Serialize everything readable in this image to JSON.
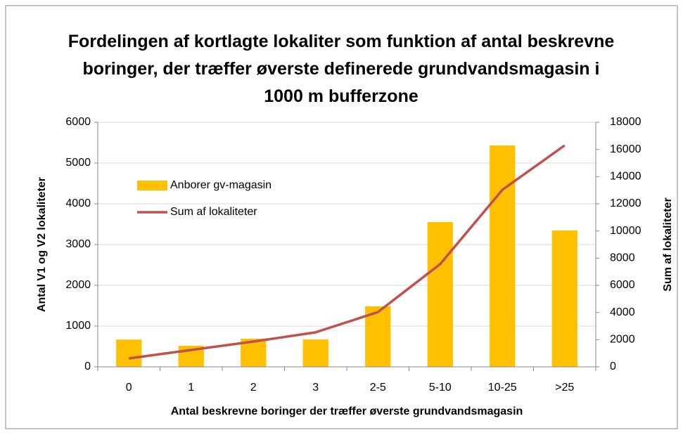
{
  "chart_data": {
    "type": "bar",
    "title": "Fordelingen af kortlagte lokaliter som funktion af antal beskrevne boringer, der træffer øverste definerede grundvandsmagasin i 1000 m bufferzone",
    "x_label": "Antal beskrevne boringer der træffer øverste grundvandsmagasin",
    "y_label": "Antal V1 og V2 lokaliteter",
    "y2_label": "Sum af lokaliteter",
    "categories": [
      "0",
      "1",
      "2",
      "3",
      "2-5",
      "5-10",
      "10-25",
      ">25"
    ],
    "series": [
      {
        "name": "Anborer gv-magasin",
        "type": "bar",
        "color": "#ffc000",
        "values": [
          670,
          517,
          690,
          672,
          1483,
          3552,
          5431,
          3345
        ]
      },
      {
        "name": "Sum af lokaliteter",
        "type": "line",
        "axis": "y2",
        "color": "#c0504d",
        "values": [
          620,
          1240,
          1860,
          2540,
          4030,
          7560,
          13030,
          16300
        ]
      }
    ],
    "ylim": [
      0,
      6000
    ],
    "yticks": [
      0,
      1000,
      2000,
      3000,
      4000,
      5000,
      6000
    ],
    "y2lim": [
      0,
      18000
    ],
    "y2ticks": [
      0,
      2000,
      4000,
      6000,
      8000,
      10000,
      12000,
      14000,
      16000,
      18000
    ],
    "grid": true,
    "legend": "upper left"
  }
}
